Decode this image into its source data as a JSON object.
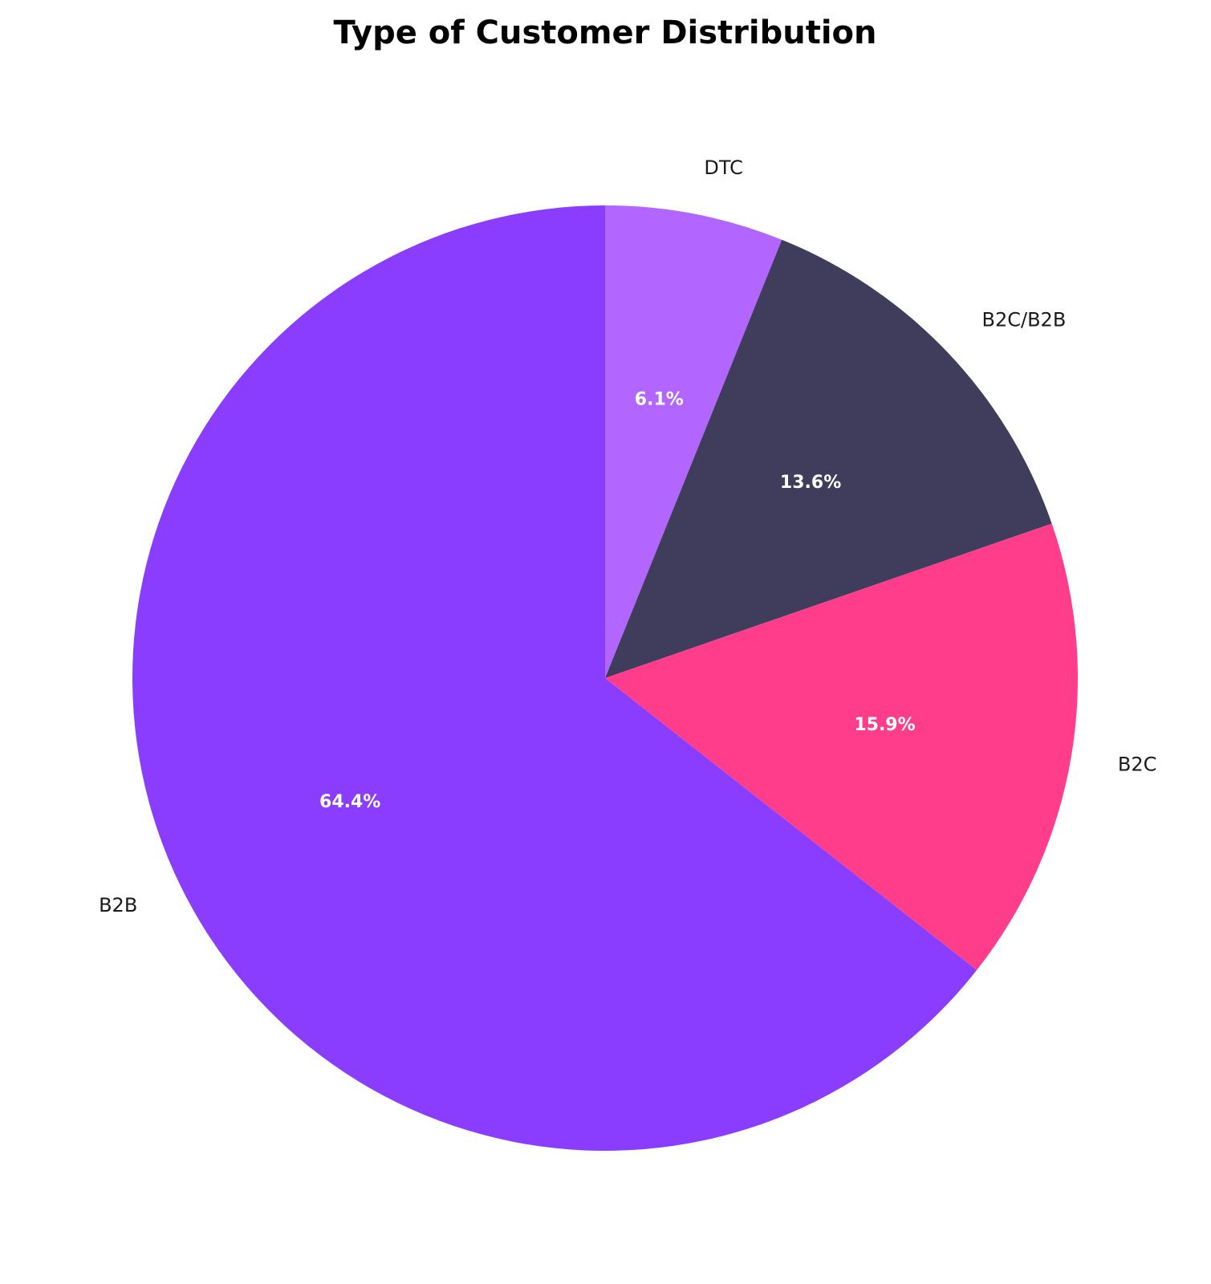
{
  "chart_data": {
    "type": "pie",
    "title": "Type of Customer Distribution",
    "start": "top",
    "direction": "clockwise",
    "slices": [
      {
        "label": "DTC",
        "value": 6.1,
        "pct_label": "6.1%",
        "color": "#b266ff"
      },
      {
        "label": "B2C/B2B",
        "value": 13.6,
        "pct_label": "13.6%",
        "color": "#3f3d5b"
      },
      {
        "label": "B2C",
        "value": 15.9,
        "pct_label": "15.9%",
        "color": "#ff3d8b"
      },
      {
        "label": "B2B",
        "value": 64.4,
        "pct_label": "64.4%",
        "color": "#8a3dff"
      }
    ]
  }
}
